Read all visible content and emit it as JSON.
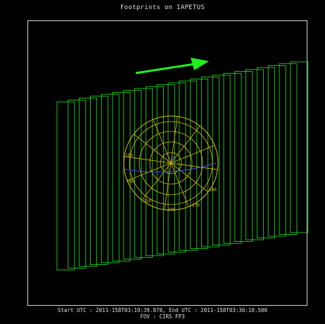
{
  "title": "Footprints on IAPETUS",
  "footer": {
    "times": "Start UTC : 2011-158T03:19:39.870,    End UTC : 2011-158T03:36:10.500",
    "fov": "FOV : CIRS FP3"
  },
  "colors": {
    "background": "#000000",
    "frame": "#d8d8d8",
    "footprint": "#1ed21e",
    "arrow": "#1ef01e",
    "grid": "#e0c000",
    "terminator": "#3c5cff",
    "text": "#e0e0e0"
  },
  "footprint_count": 22,
  "globe": {
    "longitude_labels": [
      "150",
      "180",
      "210",
      "240",
      "270",
      "300"
    ]
  },
  "arrow": {
    "icon": "motion-direction-arrow"
  }
}
